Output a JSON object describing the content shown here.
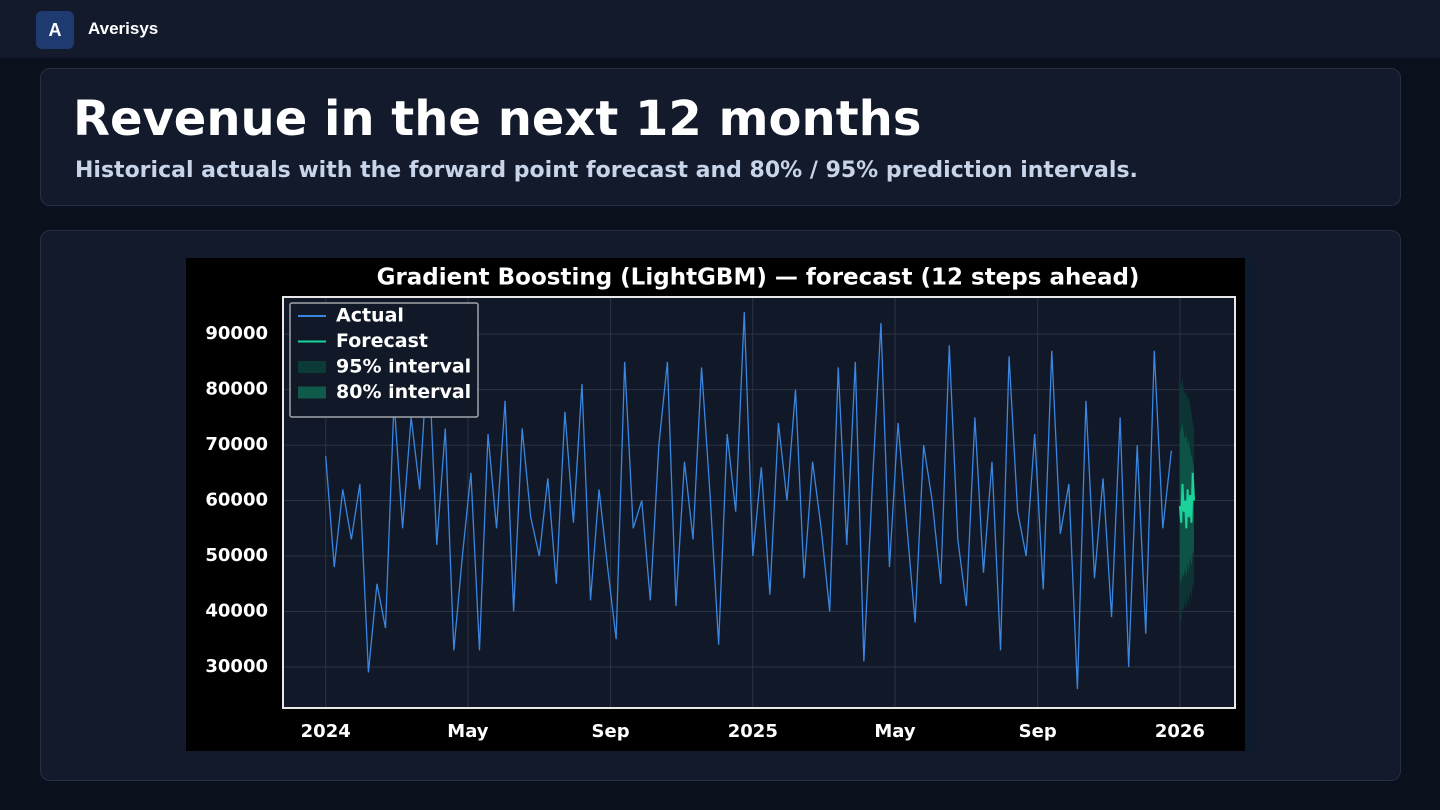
{
  "header": {
    "brand_initial": "A",
    "brand": "Averisys"
  },
  "hero": {
    "title": "Revenue in the next 12 months",
    "subtitle": "Historical actuals with the forward point forecast and 80% / 95% prediction intervals."
  },
  "chart_data": {
    "type": "line",
    "title": "Gradient Boosting (LightGBM) — forecast (12 steps ahead)",
    "xlim": [
      2023.9,
      2026.129
    ],
    "xticks": [
      2024,
      {
        "value": 2024.333,
        "label": "May"
      },
      {
        "value": 2024.667,
        "label": "Sep"
      },
      2025,
      {
        "value": 2025.333,
        "label": "May"
      },
      {
        "value": 2025.667,
        "label": "Sep"
      },
      2026
    ],
    "ylim": [
      22600,
      96700
    ],
    "yticks": [
      30000,
      40000,
      50000,
      60000,
      70000,
      80000,
      90000
    ],
    "grid": true,
    "legend": "upper left",
    "series": [
      {
        "name": "Actual",
        "color": "#3a86e0",
        "kind": "line",
        "x": [
          2024,
          2024.02,
          2024.04,
          2024.06,
          2024.08,
          2024.1,
          2024.12,
          2024.14,
          2024.16,
          2024.18,
          2024.2,
          2024.22,
          2024.24,
          2024.26,
          2024.28,
          2024.3,
          2024.32,
          2024.34,
          2024.36,
          2024.38,
          2024.4,
          2024.42,
          2024.44,
          2024.46,
          2024.48,
          2024.5,
          2024.52,
          2024.54,
          2024.56,
          2024.58,
          2024.6,
          2024.62,
          2024.64,
          2024.66,
          2024.68,
          2024.7,
          2024.72,
          2024.74,
          2024.76,
          2024.78,
          2024.8,
          2024.82,
          2024.84,
          2024.86,
          2024.88,
          2024.9,
          2024.92,
          2024.94,
          2024.96,
          2024.98,
          2025,
          2025.02,
          2025.04,
          2025.06,
          2025.08,
          2025.1,
          2025.12,
          2025.14,
          2025.16,
          2025.18,
          2025.2,
          2025.22,
          2025.24,
          2025.26,
          2025.28,
          2025.3,
          2025.32,
          2025.34,
          2025.36,
          2025.38,
          2025.4,
          2025.42,
          2025.44,
          2025.46,
          2025.48,
          2025.5,
          2025.52,
          2025.54,
          2025.56,
          2025.58,
          2025.6,
          2025.62,
          2025.64,
          2025.66,
          2025.68,
          2025.7,
          2025.72,
          2025.74,
          2025.76,
          2025.78,
          2025.8,
          2025.82,
          2025.84,
          2025.86,
          2025.88,
          2025.9,
          2025.92,
          2025.94,
          2025.96,
          2025.98
        ],
        "values": [
          68000,
          48000,
          62000,
          53000,
          63000,
          29000,
          45000,
          37000,
          78000,
          55000,
          75000,
          62000,
          88000,
          52000,
          73000,
          33000,
          50000,
          65000,
          33000,
          72000,
          55000,
          78000,
          40000,
          73000,
          57000,
          50000,
          64000,
          45000,
          76000,
          56000,
          81000,
          42000,
          62000,
          48000,
          35000,
          85000,
          55000,
          60000,
          42000,
          70000,
          85000,
          41000,
          67000,
          53000,
          84000,
          61000,
          34000,
          72000,
          58000,
          94000,
          50000,
          66000,
          43000,
          74000,
          60000,
          80000,
          46000,
          67000,
          55000,
          40000,
          84000,
          52000,
          85000,
          31000,
          63000,
          92000,
          48000,
          74000,
          56000,
          38000,
          70000,
          60000,
          45000,
          88000,
          53000,
          41000,
          75000,
          47000,
          67000,
          33000,
          86000,
          58000,
          50000,
          72000,
          44000,
          87000,
          54000,
          63000,
          26000,
          78000,
          46000,
          64000,
          39000,
          75000,
          30000,
          70000,
          36000,
          87000,
          55000,
          69000
        ]
      },
      {
        "name": "Forecast",
        "color": "#19d39a",
        "kind": "line",
        "x": [
          2026,
          2026.003,
          2026.006,
          2026.009,
          2026.012,
          2026.015,
          2026.018,
          2026.021,
          2026.024,
          2026.027,
          2026.03,
          2026.033
        ],
        "values": [
          59000,
          56000,
          63000,
          58000,
          60000,
          55000,
          62000,
          57000,
          61000,
          56000,
          65000,
          60000
        ]
      },
      {
        "name": "95% interval",
        "color": "#0c3a37",
        "kind": "band",
        "x": [
          2026,
          2026.003,
          2026.006,
          2026.009,
          2026.012,
          2026.015,
          2026.018,
          2026.021,
          2026.024,
          2026.027,
          2026.03,
          2026.033
        ],
        "lower": [
          39000,
          38000,
          41000,
          40000,
          42000,
          40000,
          43000,
          41000,
          44000,
          42000,
          45000,
          44000
        ],
        "upper": [
          80000,
          81000,
          82000,
          80000,
          79000,
          80000,
          78000,
          79000,
          77000,
          76000,
          74000,
          73000
        ]
      },
      {
        "name": "80% interval",
        "color": "#0f5a4a",
        "kind": "band",
        "x": [
          2026,
          2026.003,
          2026.006,
          2026.009,
          2026.012,
          2026.015,
          2026.018,
          2026.021,
          2026.024,
          2026.027,
          2026.03,
          2026.033
        ],
        "lower": [
          46000,
          45000,
          47000,
          46000,
          48000,
          46000,
          49000,
          47000,
          50000,
          48000,
          51000,
          50000
        ],
        "upper": [
          72000,
          73000,
          74000,
          72000,
          71000,
          72000,
          70000,
          71000,
          69000,
          68000,
          67000,
          66000
        ]
      }
    ]
  }
}
